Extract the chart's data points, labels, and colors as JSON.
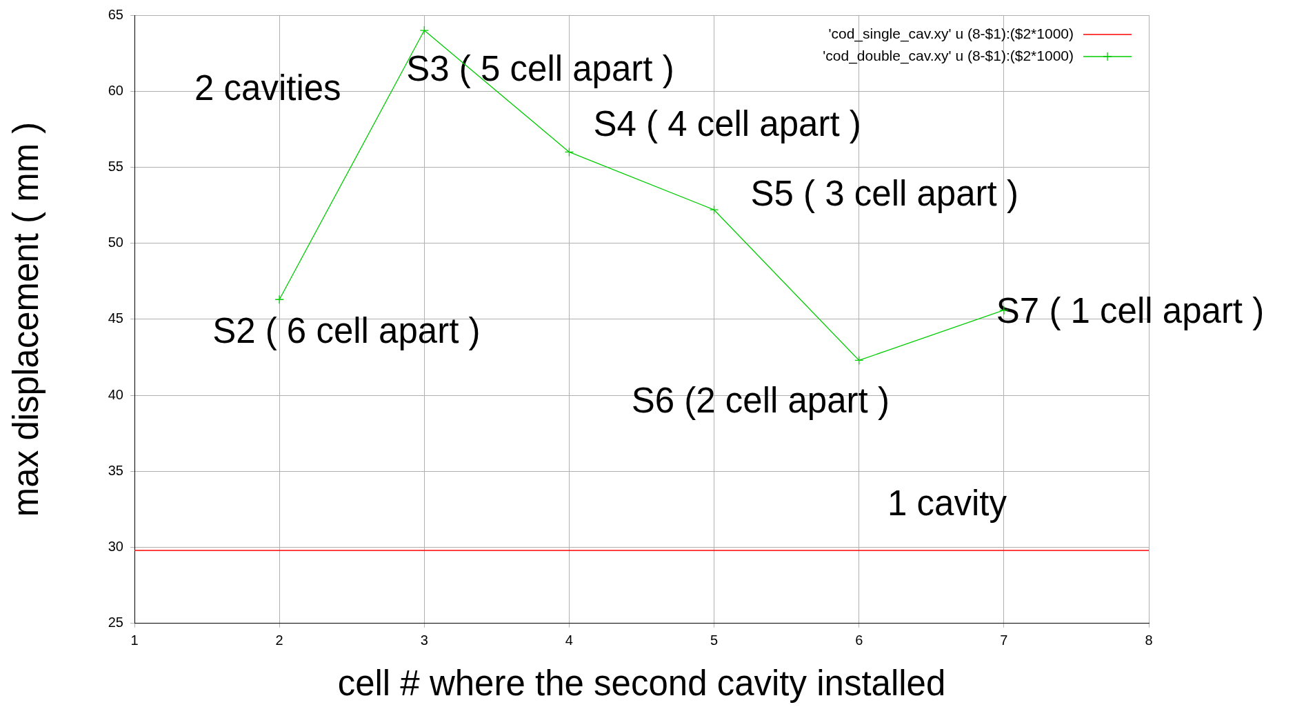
{
  "chart_data": {
    "type": "line",
    "xlabel": "cell # where the second cavity installed",
    "ylabel": "max displacement ( mm )",
    "xlim": [
      1,
      8
    ],
    "xticks": [
      1,
      2,
      3,
      4,
      5,
      6,
      7,
      8
    ],
    "ylim": [
      25,
      65
    ],
    "yticks": [
      25,
      30,
      35,
      40,
      45,
      50,
      55,
      60,
      65
    ],
    "grid": true,
    "legend": "top right",
    "series": [
      {
        "name": "'cod_single_cav.xy' u (8-$1):($2*1000)",
        "color": "#ff0000",
        "x": [
          1,
          8
        ],
        "values": [
          29.8,
          29.8
        ],
        "marker": "none"
      },
      {
        "name": "'cod_double_cav.xy' u (8-$1):($2*1000)",
        "color": "#00cc00",
        "x": [
          2,
          3,
          4,
          5,
          6,
          7
        ],
        "values": [
          46.3,
          64.0,
          56.0,
          52.2,
          42.3,
          45.6
        ],
        "marker": "cross"
      }
    ],
    "annotations": [
      "2 cavities",
      {
        "text": "S2 ( 6 cell apart )",
        "x": 2,
        "y": 46.3
      },
      {
        "text": "S3 ( 5 cell apart )",
        "x": 3,
        "y": 64.0
      },
      {
        "text": "S4 ( 4 cell apart )",
        "x": 4,
        "y": 56.0
      },
      {
        "text": "S5 ( 3 cell apart )",
        "x": 5,
        "y": 52.2
      },
      {
        "text": "S6 (2 cell apart )",
        "x": 6,
        "y": 42.3
      },
      {
        "text": "S7 ( 1 cell apart )",
        "x": 7,
        "y": 45.6
      },
      "1 cavity"
    ]
  }
}
